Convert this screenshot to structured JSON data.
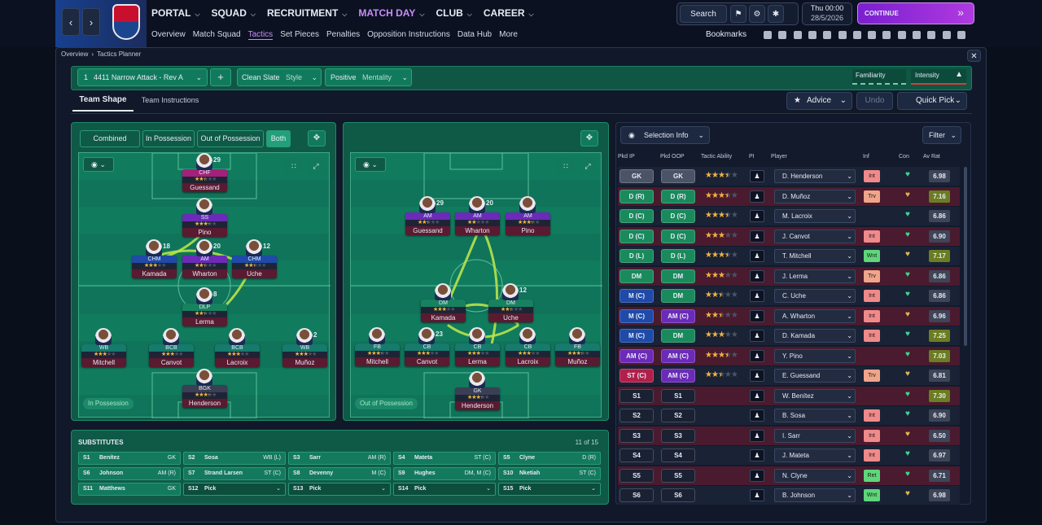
{
  "nav": {
    "main": [
      "PORTAL",
      "SQUAD",
      "RECRUITMENT",
      "MATCH DAY",
      "CLUB",
      "CAREER"
    ],
    "sub": [
      "Overview",
      "Match Squad",
      "Tactics",
      "Set Pieces",
      "Penalties",
      "Opposition Instructions",
      "Data Hub",
      "More"
    ],
    "search": "Search",
    "day": "Thu 00:00",
    "date": "28/5/2026",
    "continue": "CONTINUE",
    "bookmarks": "Bookmarks"
  },
  "breadcrumb": [
    "Overview",
    "Tactics Planner"
  ],
  "toolbar": {
    "slot": "1",
    "tactic": "4411 Narrow Attack - Rev A",
    "style_value": "Clean Slate",
    "style_label": "Style",
    "mentality_value": "Positive",
    "mentality_label": "Mentality",
    "familiarity": "Familiarity",
    "intensity": "Intensity"
  },
  "tabs": [
    "Team Shape",
    "Team Instructions"
  ],
  "actions": {
    "advice": "Advice",
    "undo": "Undo",
    "quick_pick": "Quick Pick"
  },
  "view_toggles": [
    "Combined",
    "In Possession",
    "Out of Possession",
    "Both"
  ],
  "pitch_in": {
    "label": "In Possession",
    "players": [
      {
        "number": "29",
        "role": "CHF",
        "name": "Guessand",
        "stars": 2.5
      },
      {
        "role": "SS",
        "name": "Pino",
        "stars": 3.5
      },
      {
        "number": "18",
        "role": "CHM",
        "name": "Kamada",
        "stars": 3
      },
      {
        "number": "20",
        "role": "AM",
        "name": "Wharton",
        "stars": 2.5
      },
      {
        "number": "12",
        "role": "CHM",
        "name": "Uche",
        "stars": 2.5
      },
      {
        "number": "8",
        "role": "DLP",
        "name": "Lerma",
        "stars": 2.5
      },
      {
        "role": "WB",
        "name": "Mitchell",
        "stars": 3
      },
      {
        "role": "BCB",
        "name": "Canvot",
        "stars": 3
      },
      {
        "role": "BCB",
        "name": "Lacroix",
        "stars": 3
      },
      {
        "number": "2",
        "role": "WB",
        "name": "Muñoz",
        "stars": 3
      },
      {
        "role": "BGK",
        "name": "Henderson",
        "stars": 3.5
      }
    ]
  },
  "pitch_out": {
    "label": "Out of Possession",
    "players": [
      {
        "number": "29",
        "role": "AM",
        "name": "Guessand",
        "stars": 2.5
      },
      {
        "number": "20",
        "role": "AM",
        "name": "Wharton",
        "stars": 2
      },
      {
        "role": "AM",
        "name": "Pino",
        "stars": 3.5
      },
      {
        "role": "DM",
        "name": "Kamada",
        "stars": 3
      },
      {
        "number": "12",
        "role": "DM",
        "name": "Uche",
        "stars": 2.5
      },
      {
        "role": "FB",
        "name": "Mitchell",
        "stars": 3.5
      },
      {
        "number": "23",
        "role": "CB",
        "name": "Canvot",
        "stars": 3
      },
      {
        "role": "CB",
        "name": "Lerma",
        "stars": 3
      },
      {
        "role": "CB",
        "name": "Lacroix",
        "stars": 3
      },
      {
        "role": "FB",
        "name": "Muñoz",
        "stars": 3.5
      },
      {
        "role": "GK",
        "name": "Henderson",
        "stars": 3.5
      }
    ]
  },
  "substitutes": {
    "title": "SUBSTITUTES",
    "count": "11 of 15",
    "items": [
      {
        "slot": "S1",
        "name": "Benítez",
        "pos": "GK"
      },
      {
        "slot": "S2",
        "name": "Sosa",
        "pos": "WB (L)"
      },
      {
        "slot": "S3",
        "name": "Sarr",
        "pos": "AM (R)"
      },
      {
        "slot": "S4",
        "name": "Mateta",
        "pos": "ST (C)"
      },
      {
        "slot": "S5",
        "name": "Clyne",
        "pos": "D (R)"
      },
      {
        "slot": "S6",
        "name": "Johnson",
        "pos": "AM (R)"
      },
      {
        "slot": "S7",
        "name": "Strand Larsen",
        "pos": "ST (C)"
      },
      {
        "slot": "S8",
        "name": "Devenny",
        "pos": "M (C)"
      },
      {
        "slot": "S9",
        "name": "Hughes",
        "pos": "DM, M (C)"
      },
      {
        "slot": "S10",
        "name": "Nketiah",
        "pos": "ST (C)"
      },
      {
        "slot": "S11",
        "name": "Matthews",
        "pos": "GK"
      },
      {
        "slot": "S12",
        "name": "Pick"
      },
      {
        "slot": "S13",
        "name": "Pick"
      },
      {
        "slot": "S14",
        "name": "Pick"
      },
      {
        "slot": "S15",
        "name": "Pick"
      }
    ]
  },
  "selection": {
    "info_button": "Selection Info",
    "filter": "Filter",
    "headers": [
      "Pkd IP",
      "Pkd OOP",
      "Tactic Ability",
      "PI",
      "Player",
      "Inf",
      "Con",
      "Av Rat"
    ],
    "rows": [
      {
        "ip": "GK",
        "oop": "GK",
        "ability": 3.5,
        "player": "D. Henderson",
        "inf": "Int",
        "rating": "6.98"
      },
      {
        "ip": "D (R)",
        "oop": "D (R)",
        "ability": 3.5,
        "player": "D. Muñoz",
        "inf": "Trv",
        "rating": "7.16"
      },
      {
        "ip": "D (C)",
        "oop": "D (C)",
        "ability": 3.5,
        "player": "M. Lacroix",
        "rating": "6.86"
      },
      {
        "ip": "D (C)",
        "oop": "D (C)",
        "ability": 3,
        "player": "J. Canvot",
        "inf": "Int",
        "rating": "6.90"
      },
      {
        "ip": "D (L)",
        "oop": "D (L)",
        "ability": 3.5,
        "player": "T. Mitchell",
        "inf": "Wnt",
        "rating": "7.17"
      },
      {
        "ip": "DM",
        "oop": "DM",
        "ability": 3,
        "player": "J. Lerma",
        "inf": "Trv",
        "rating": "6.86"
      },
      {
        "ip": "M (C)",
        "oop": "DM",
        "ability": 2.5,
        "player": "C. Uche",
        "inf": "Int",
        "rating": "6.86"
      },
      {
        "ip": "M (C)",
        "oop": "AM (C)",
        "ability": 2.5,
        "player": "A. Wharton",
        "inf": "Int",
        "rating": "6.96"
      },
      {
        "ip": "M (C)",
        "oop": "DM",
        "ability": 3,
        "player": "D. Kamada",
        "inf": "Int",
        "rating": "7.25"
      },
      {
        "ip": "AM (C)",
        "oop": "AM (C)",
        "ability": 3.5,
        "player": "Y. Pino",
        "rating": "7.03"
      },
      {
        "ip": "ST (C)",
        "oop": "AM (C)",
        "ability": 2.5,
        "player": "E. Guessand",
        "inf": "Trv",
        "rating": "6.81"
      },
      {
        "ip": "S1",
        "oop": "S1",
        "player": "W. Benítez",
        "rating": "7.30"
      },
      {
        "ip": "S2",
        "oop": "S2",
        "player": "B. Sosa",
        "inf": "Int",
        "rating": "6.90"
      },
      {
        "ip": "S3",
        "oop": "S3",
        "player": "I. Sarr",
        "inf": "Int",
        "rating": "6.50"
      },
      {
        "ip": "S4",
        "oop": "S4",
        "player": "J. Mateta",
        "inf": "Int",
        "rating": "6.97"
      },
      {
        "ip": "S5",
        "oop": "S5",
        "player": "N. Clyne",
        "inf": "Ret",
        "rating": "6.71"
      },
      {
        "ip": "S6",
        "oop": "S6",
        "player": "B. Johnson",
        "inf": "Wnt",
        "rating": "6.98"
      }
    ]
  }
}
